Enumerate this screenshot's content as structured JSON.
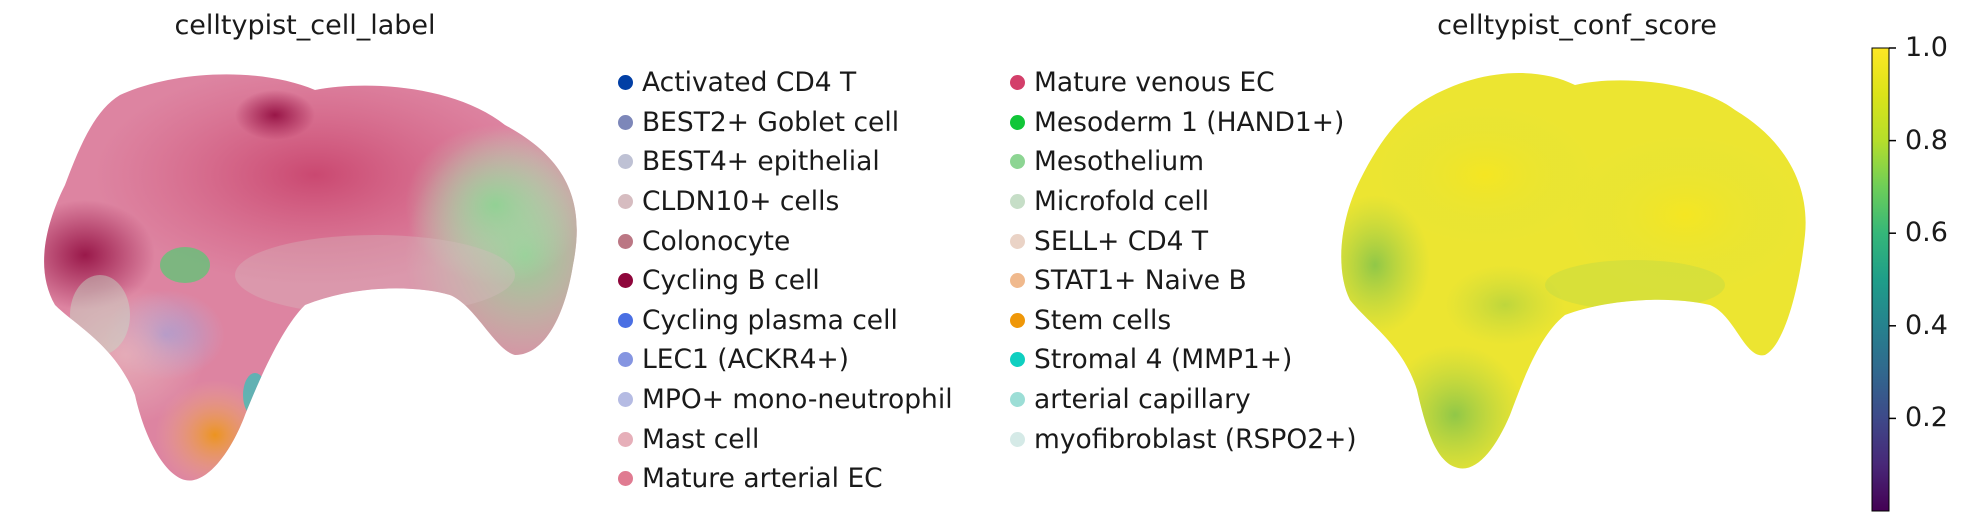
{
  "chart_data": [
    {
      "type": "scatter",
      "title": "celltypist_cell_label",
      "xlabel": "",
      "ylabel": "",
      "legend_placement": "right",
      "grid": false,
      "categories": [
        {
          "label": "Activated CD4 T",
          "color": "#023fa5"
        },
        {
          "label": "BEST2+ Goblet cell",
          "color": "#7d87b9"
        },
        {
          "label": "BEST4+ epithelial",
          "color": "#bec1d4"
        },
        {
          "label": "CLDN10+ cells",
          "color": "#d6bcc0"
        },
        {
          "label": "Colonocyte",
          "color": "#bb7784"
        },
        {
          "label": "Cycling B cell",
          "color": "#8e063b"
        },
        {
          "label": "Cycling plasma cell",
          "color": "#4a6fe3"
        },
        {
          "label": "LEC1 (ACKR4+)",
          "color": "#8595e1"
        },
        {
          "label": "MPO+ mono-neutrophil",
          "color": "#b5bbe3"
        },
        {
          "label": "Mast cell",
          "color": "#e6afb9"
        },
        {
          "label": "Mature arterial EC",
          "color": "#e07b91"
        },
        {
          "label": "Mature venous EC",
          "color": "#d33f6a"
        },
        {
          "label": "Mesoderm 1 (HAND1+)",
          "color": "#11c638"
        },
        {
          "label": "Mesothelium",
          "color": "#8dd593"
        },
        {
          "label": "Microfold cell",
          "color": "#c6dec7"
        },
        {
          "label": "SELL+ CD4 T",
          "color": "#ead3c6"
        },
        {
          "label": "STAT1+ Naive B",
          "color": "#f0b98d"
        },
        {
          "label": "Stem cells",
          "color": "#ef9708"
        },
        {
          "label": "Stromal 4 (MMP1+)",
          "color": "#0fcfc0"
        },
        {
          "label": "arterial capillary",
          "color": "#9cded6"
        },
        {
          "label": "myofibroblast (RSPO2+)",
          "color": "#d5eae7"
        }
      ]
    },
    {
      "type": "scatter",
      "title": "celltypist_conf_score",
      "xlabel": "",
      "ylabel": "",
      "grid": false,
      "colorbar": {
        "colormap": "viridis",
        "range": [
          0.0,
          1.0
        ],
        "ticks": [
          0.2,
          0.4,
          0.6,
          0.8,
          1.0
        ],
        "tick_labels": [
          "0.2",
          "0.4",
          "0.6",
          "0.8",
          "1.0"
        ]
      }
    }
  ]
}
